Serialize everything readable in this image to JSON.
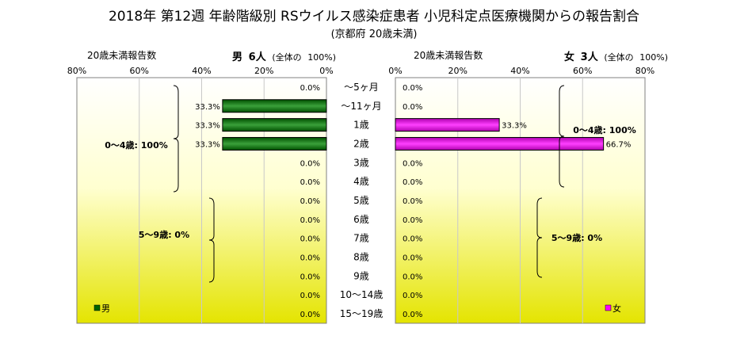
{
  "title": "2018年 第12週 年齢階級別 RSウイルス感染症患者 小児科定点医療機関からの報告割合",
  "subtitle": "(京都府 20歳未満)",
  "left_header": {
    "report_label": "20歳未満報告数",
    "sex": "男",
    "count": "6人",
    "total_label": "(全体の",
    "total_pct": "100%)"
  },
  "right_header": {
    "report_label": "20歳未満報告数",
    "sex": "女",
    "count": "3人",
    "total_label": "(全体の",
    "total_pct": "100%)"
  },
  "chart_data": {
    "type": "bar",
    "orientation": "horizontal-pyramid",
    "categories": [
      "〜5ヶ月",
      "〜11ヶ月",
      "1歳",
      "2歳",
      "3歳",
      "4歳",
      "5歳",
      "6歳",
      "7歳",
      "8歳",
      "9歳",
      "10〜14歳",
      "15〜19歳"
    ],
    "series": [
      {
        "name": "男",
        "side": "left",
        "color": "#006400",
        "values": [
          0,
          33.3,
          33.3,
          33.3,
          0,
          0,
          0,
          0,
          0,
          0,
          0,
          0,
          0
        ],
        "labels": [
          "0.0%",
          "33.3%",
          "33.3%",
          "33.3%",
          "0.0%",
          "0.0%",
          "0.0%",
          "0.0%",
          "0.0%",
          "0.0%",
          "0.0%",
          "0.0%",
          "0.0%"
        ]
      },
      {
        "name": "女",
        "side": "right",
        "color": "#ff00ff",
        "values": [
          0,
          0,
          33.3,
          66.7,
          0,
          0,
          0,
          0,
          0,
          0,
          0,
          0,
          0
        ],
        "labels": [
          "0.0%",
          "0.0%",
          "33.3%",
          "66.7%",
          "0.0%",
          "0.0%",
          "0.0%",
          "0.0%",
          "0.0%",
          "0.0%",
          "0.0%",
          "0.0%",
          "0.0%"
        ]
      }
    ],
    "left_ticks": [
      "80%",
      "60%",
      "40%",
      "20%",
      "0%"
    ],
    "right_ticks": [
      "0%",
      "20%",
      "40%",
      "60%",
      "80%"
    ],
    "xlim": [
      0,
      80
    ],
    "grid": true,
    "annotations": {
      "left_group1": "0〜4歳: 100%",
      "left_group2": "5〜9歳: 0%",
      "right_group1": "0〜4歳: 100%",
      "right_group2": "5〜9歳: 0%"
    },
    "legend": {
      "left": "男",
      "right": "女"
    }
  }
}
